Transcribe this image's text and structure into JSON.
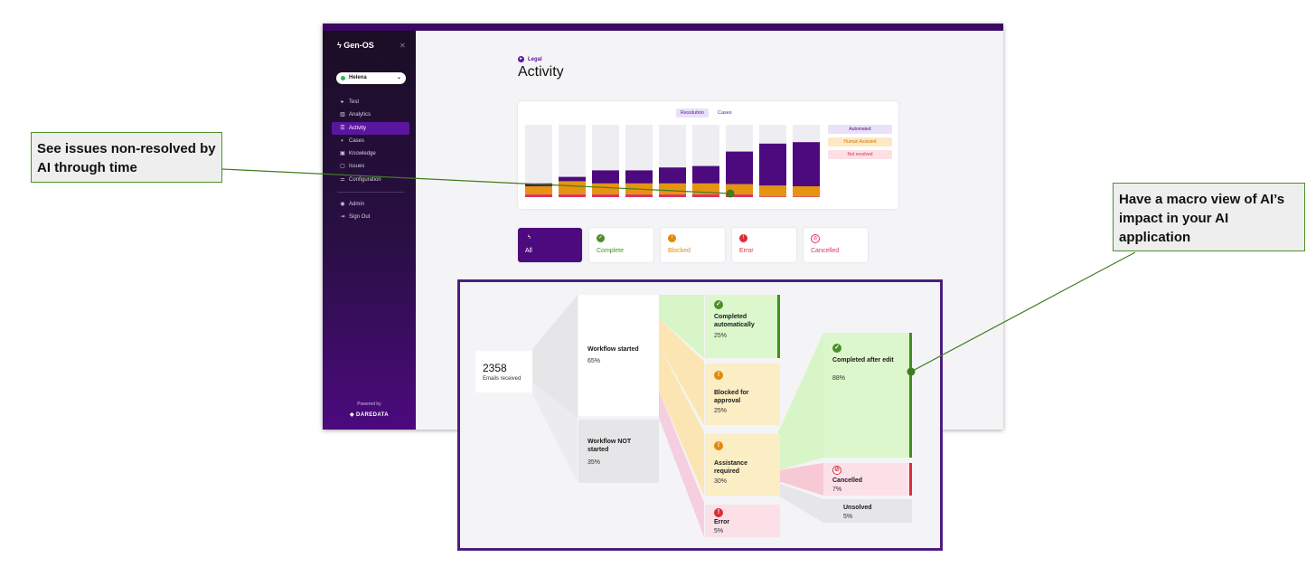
{
  "app": {
    "brand": "Gen-OS",
    "user": "Helena",
    "nav": [
      {
        "label": "Test",
        "icon": "play-icon",
        "glyph": "▸"
      },
      {
        "label": "Analytics",
        "icon": "bar-chart-icon",
        "glyph": "▥"
      },
      {
        "label": "Activity",
        "icon": "list-icon",
        "glyph": "☰",
        "active": true
      },
      {
        "label": "Cases",
        "icon": "cases-icon",
        "glyph": "◐"
      },
      {
        "label": "Knowledge",
        "icon": "knowledge-icon",
        "glyph": "▣"
      },
      {
        "label": "Issues",
        "icon": "issues-icon",
        "glyph": "▢"
      },
      {
        "label": "Configuration",
        "icon": "sliders-icon",
        "glyph": "⚌"
      }
    ],
    "nav_bottom": [
      {
        "label": "Admin",
        "icon": "admin-icon",
        "glyph": "◉"
      },
      {
        "label": "Sign Out",
        "icon": "sign-out-icon",
        "glyph": "⇥"
      }
    ],
    "powered_by": "Powered by",
    "company": "DAREDATA"
  },
  "page": {
    "breadcrumb": "Legal",
    "title": "Activity",
    "chart_tabs": [
      "Resolution",
      "Cases"
    ],
    "filters": [
      {
        "label": "All",
        "icon": "bolt-icon",
        "glyph": "ϟ",
        "color": "#ffffff"
      },
      {
        "label": "Complete",
        "icon": "check-circle-icon",
        "glyph": "✓",
        "color": "#4d8f2a"
      },
      {
        "label": "Blocked",
        "icon": "blocked-icon",
        "glyph": "!",
        "color": "#e08a0b"
      },
      {
        "label": "Error",
        "icon": "error-icon",
        "glyph": "!",
        "color": "#d92e3a"
      },
      {
        "label": "Cancelled",
        "icon": "cancel-icon",
        "glyph": "⊘",
        "color": "#e0345f"
      }
    ]
  },
  "chart_data": {
    "type": "bar",
    "stacked": true,
    "categories": [
      "",
      "",
      "",
      "",
      "",
      "",
      "",
      "",
      ""
    ],
    "series": [
      {
        "name": "Not resolved",
        "color": "#e0345f",
        "values": [
          4,
          4,
          4,
          4,
          4,
          4,
          4,
          1,
          1
        ]
      },
      {
        "name": "Human Assisted",
        "color": "#e59412",
        "values": [
          11,
          18,
          15,
          15,
          15,
          15,
          14,
          15,
          14
        ]
      },
      {
        "name": "Automated",
        "color": "#4c0a7e",
        "values": [
          4,
          6,
          18,
          18,
          22,
          24,
          45,
          58,
          61
        ]
      }
    ],
    "ylim": [
      0,
      100
    ],
    "legend": "right",
    "grid": false
  },
  "flow": {
    "emails_count": "2358",
    "emails_label": "Emails received",
    "nodes": [
      {
        "key": "wf_started",
        "title": "Workflow started",
        "pct": "65%"
      },
      {
        "key": "wf_not",
        "title": "Workflow NOT started",
        "pct": "35%"
      },
      {
        "key": "auto",
        "title": "Completed automatically",
        "pct": "25%"
      },
      {
        "key": "blocked",
        "title": "Blocked for approval",
        "pct": "25%"
      },
      {
        "key": "assist",
        "title": "Assistance required",
        "pct": "30%"
      },
      {
        "key": "error",
        "title": "Error",
        "pct": "5%"
      },
      {
        "key": "after_edit",
        "title": "Completed after edit",
        "pct": "88%"
      },
      {
        "key": "cancelled",
        "title": "Cancelled",
        "pct": "7%"
      },
      {
        "key": "unsolved",
        "title": "Unsolved",
        "pct": "5%"
      }
    ]
  },
  "callouts": {
    "left": "See issues non-resolved by AI through time",
    "right": "Have a macro view of AI’s impact in your AI application"
  }
}
